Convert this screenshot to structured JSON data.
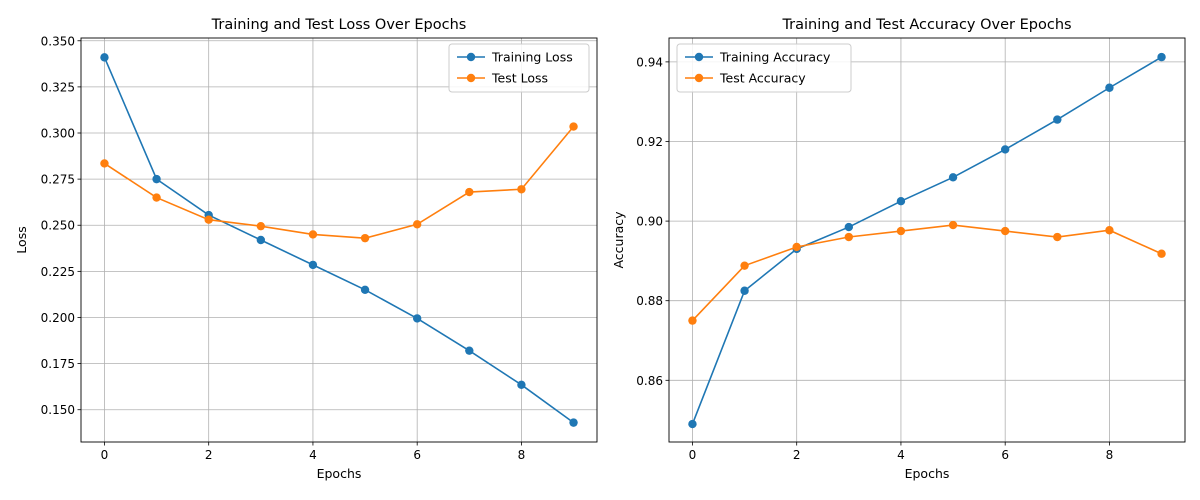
{
  "chart_data": [
    {
      "type": "line",
      "title": "Training and Test Loss Over Epochs",
      "xlabel": "Epochs",
      "ylabel": "Loss",
      "xlim": [
        -0.45,
        9.45
      ],
      "ylim": [
        0.1325,
        0.3515
      ],
      "xticks": [
        0,
        2,
        4,
        6,
        8
      ],
      "xtick_labels": [
        "0",
        "2",
        "4",
        "6",
        "8"
      ],
      "yticks": [
        0.15,
        0.175,
        0.2,
        0.225,
        0.25,
        0.275,
        0.3,
        0.325,
        0.35
      ],
      "ytick_labels": [
        "0.150",
        "0.175",
        "0.200",
        "0.225",
        "0.250",
        "0.275",
        "0.300",
        "0.325",
        "0.350"
      ],
      "grid": true,
      "legend_position": "top-right",
      "x": [
        0,
        1,
        2,
        3,
        4,
        5,
        6,
        7,
        8,
        9
      ],
      "series": [
        {
          "name": "Training Loss",
          "color": "#1f77b4",
          "values": [
            0.341,
            0.275,
            0.2555,
            0.242,
            0.2285,
            0.215,
            0.1995,
            0.182,
            0.1635,
            0.143
          ]
        },
        {
          "name": "Test Loss",
          "color": "#ff7f0e",
          "values": [
            0.2835,
            0.265,
            0.253,
            0.2495,
            0.245,
            0.243,
            0.2505,
            0.268,
            0.2695,
            0.3035
          ]
        }
      ]
    },
    {
      "type": "line",
      "title": "Training and Test Accuracy Over Epochs",
      "xlabel": "Epochs",
      "ylabel": "Accuracy",
      "xlim": [
        -0.45,
        9.45
      ],
      "ylim": [
        0.8445,
        0.946
      ],
      "xticks": [
        0,
        2,
        4,
        6,
        8
      ],
      "xtick_labels": [
        "0",
        "2",
        "4",
        "6",
        "8"
      ],
      "yticks": [
        0.86,
        0.88,
        0.9,
        0.92,
        0.94
      ],
      "ytick_labels": [
        "0.86",
        "0.88",
        "0.90",
        "0.92",
        "0.94"
      ],
      "grid": true,
      "legend_position": "top-left",
      "x": [
        0,
        1,
        2,
        3,
        4,
        5,
        6,
        7,
        8,
        9
      ],
      "series": [
        {
          "name": "Training Accuracy",
          "color": "#1f77b4",
          "values": [
            0.849,
            0.8825,
            0.893,
            0.8985,
            0.905,
            0.911,
            0.918,
            0.9255,
            0.9335,
            0.9412
          ]
        },
        {
          "name": "Test Accuracy",
          "color": "#ff7f0e",
          "values": [
            0.875,
            0.8888,
            0.8935,
            0.896,
            0.8975,
            0.899,
            0.8975,
            0.896,
            0.8977,
            0.8918
          ]
        }
      ]
    }
  ]
}
